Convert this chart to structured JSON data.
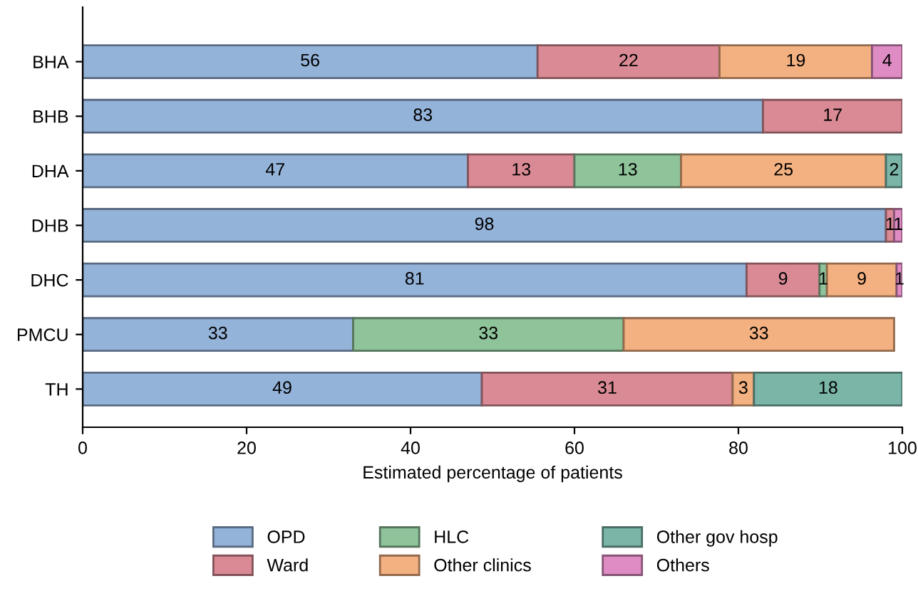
{
  "chart_data": {
    "type": "bar",
    "orientation": "horizontal",
    "stacked": true,
    "xlabel": "Estimated percentage of patients",
    "categories": [
      "BHA",
      "BHB",
      "DHA",
      "DHB",
      "DHC",
      "PMCU",
      "TH"
    ],
    "series": [
      {
        "name": "OPD",
        "color": "#94b3d9",
        "values": [
          55.5,
          83,
          47,
          98,
          81,
          33,
          48.7
        ],
        "value_labels": [
          "56",
          "83",
          "47",
          "98",
          "81",
          "33",
          "49"
        ]
      },
      {
        "name": "Ward",
        "color": "#d98a94",
        "values": [
          22.2,
          17,
          13,
          1,
          8.9,
          null,
          30.6
        ],
        "value_labels": [
          "22",
          "17",
          "13",
          "1",
          "9",
          null,
          "31"
        ]
      },
      {
        "name": "HLC",
        "color": "#8fc39a",
        "values": [
          null,
          null,
          13,
          null,
          0.9,
          33,
          null
        ],
        "value_labels": [
          null,
          null,
          "13",
          null,
          "1",
          "33",
          null
        ]
      },
      {
        "name": "Other clinics",
        "color": "#f3b080",
        "values": [
          18.6,
          null,
          25,
          null,
          8.5,
          33,
          2.6
        ],
        "value_labels": [
          "19",
          null,
          "25",
          null,
          "9",
          "33",
          "3"
        ]
      },
      {
        "name": "Other gov hosp",
        "color": "#7ab5a8",
        "values": [
          null,
          null,
          2,
          null,
          null,
          null,
          18.1
        ],
        "value_labels": [
          null,
          null,
          "2",
          null,
          null,
          null,
          "18"
        ]
      },
      {
        "name": "Others",
        "color": "#e08cc4",
        "values": [
          3.7,
          null,
          null,
          1,
          0.7,
          null,
          null
        ],
        "value_labels": [
          "4",
          null,
          null,
          "1",
          "1",
          null,
          null
        ]
      }
    ],
    "xlim": [
      0,
      100
    ],
    "xticks": [
      0,
      20,
      40,
      60,
      80,
      100
    ],
    "grid": false,
    "legend": "bottom"
  }
}
